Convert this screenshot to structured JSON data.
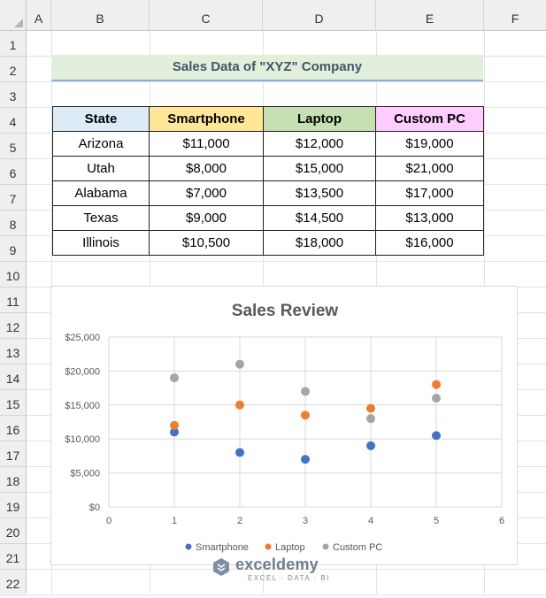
{
  "columns": [
    "A",
    "B",
    "C",
    "D",
    "E",
    "F"
  ],
  "rows": [
    "1",
    "2",
    "3",
    "4",
    "5",
    "6",
    "7",
    "8",
    "9",
    "10",
    "11",
    "12",
    "13",
    "14",
    "15",
    "16",
    "17",
    "18",
    "19",
    "20",
    "21",
    "22"
  ],
  "title": "Sales Data of \"XYZ\" Company",
  "table": {
    "headers": [
      "State",
      "Smartphone",
      "Laptop",
      "Custom PC"
    ],
    "header_colors": [
      "#ddebf7",
      "#ffe699",
      "#c6e0b4",
      "#ffccff"
    ],
    "rows": [
      [
        "Arizona",
        "$11,000",
        "$12,000",
        "$19,000"
      ],
      [
        "Utah",
        "$8,000",
        "$15,000",
        "$21,000"
      ],
      [
        "Alabama",
        "$7,000",
        "$13,500",
        "$17,000"
      ],
      [
        "Texas",
        "$9,000",
        "$14,500",
        "$13,000"
      ],
      [
        "Illinois",
        "$10,500",
        "$18,000",
        "$16,000"
      ]
    ]
  },
  "chart_data": {
    "type": "scatter",
    "title": "Sales Review",
    "xlim": [
      0,
      6
    ],
    "ylim": [
      0,
      25000
    ],
    "xticks": [
      "0",
      "1",
      "2",
      "3",
      "4",
      "5",
      "6"
    ],
    "yticks": [
      "$0",
      "$5,000",
      "$10,000",
      "$15,000",
      "$20,000",
      "$25,000"
    ],
    "grid": true,
    "legend": "bottom",
    "series": [
      {
        "name": "Smartphone",
        "color": "#4472c4",
        "x": [
          1,
          2,
          3,
          4,
          5
        ],
        "y": [
          11000,
          8000,
          7000,
          9000,
          10500
        ]
      },
      {
        "name": "Laptop",
        "color": "#ed7d31",
        "x": [
          1,
          2,
          3,
          4,
          5
        ],
        "y": [
          12000,
          15000,
          13500,
          14500,
          18000
        ]
      },
      {
        "name": "Custom PC",
        "color": "#a5a5a5",
        "x": [
          1,
          2,
          3,
          4,
          5
        ],
        "y": [
          19000,
          21000,
          17000,
          13000,
          16000
        ]
      }
    ]
  },
  "watermark": {
    "name": "exceldemy",
    "sub": "EXCEL · DATA · BI"
  }
}
